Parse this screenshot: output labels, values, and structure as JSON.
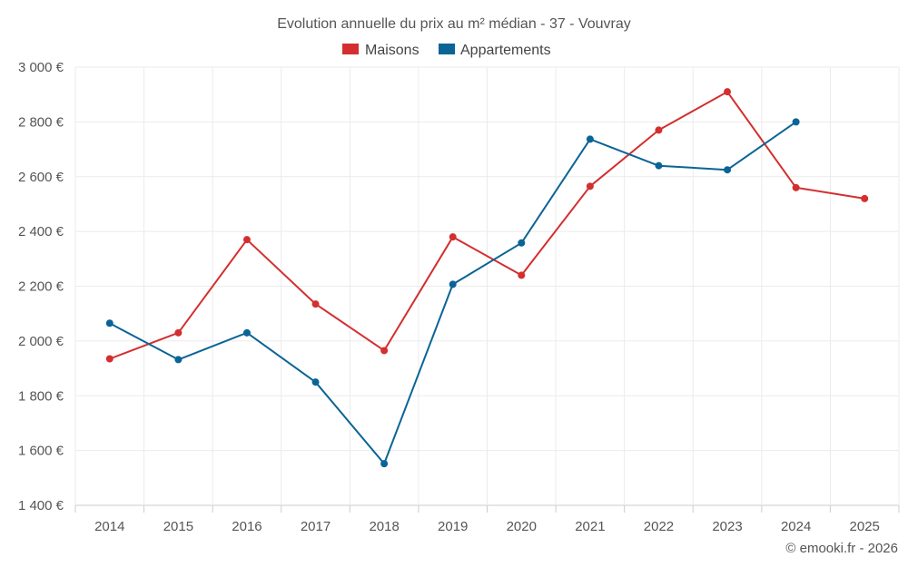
{
  "chart_data": {
    "type": "line",
    "title": "Evolution annuelle du prix au m² médian - 37 - Vouvray",
    "categories": [
      "2014",
      "2015",
      "2016",
      "2017",
      "2018",
      "2019",
      "2020",
      "2021",
      "2022",
      "2023",
      "2024",
      "2025"
    ],
    "ylim": [
      1400,
      3000
    ],
    "yticks": [
      1400,
      1600,
      1800,
      2000,
      2200,
      2400,
      2600,
      2800,
      3000
    ],
    "ytick_labels": [
      "1 400 €",
      "1 600 €",
      "1 800 €",
      "2 000 €",
      "2 200 €",
      "2 400 €",
      "2 600 €",
      "2 800 €",
      "3 000 €"
    ],
    "series": [
      {
        "name": "Maisons",
        "color": "#d32f2f",
        "values": [
          1935,
          2030,
          2370,
          2135,
          1965,
          2380,
          2240,
          2565,
          2770,
          2910,
          2560,
          2520
        ]
      },
      {
        "name": "Appartements",
        "color": "#0a6496",
        "values": [
          2065,
          1932,
          2030,
          1850,
          1552,
          2207,
          2358,
          2737,
          2640,
          2625,
          2800,
          null
        ]
      }
    ],
    "legend_position": "top-center",
    "grid": true
  },
  "credit": "© emooki.fr - 2026"
}
